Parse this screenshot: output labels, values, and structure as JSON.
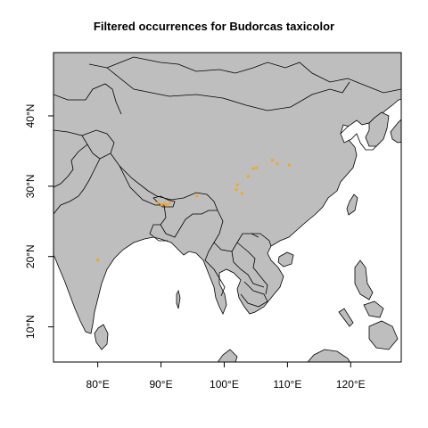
{
  "title": "Filtered occurrences for Budorcas taxicolor",
  "colors": {
    "land": "#bebebe",
    "sea": "#ffffff",
    "border": "#000000",
    "point": "#f5a623"
  },
  "map_extent": {
    "lon": [
      73,
      128
    ],
    "lat": [
      5,
      49
    ]
  },
  "x_ticks": [
    {
      "value": 80,
      "label": "80°E"
    },
    {
      "value": 90,
      "label": "90°E"
    },
    {
      "value": 100,
      "label": "100°E"
    },
    {
      "value": 110,
      "label": "110°E"
    },
    {
      "value": 120,
      "label": "120°E"
    }
  ],
  "y_ticks": [
    {
      "value": 10,
      "label": "10°N"
    },
    {
      "value": 20,
      "label": "20°N"
    },
    {
      "value": 30,
      "label": "30°N"
    },
    {
      "value": 40,
      "label": "40°N"
    }
  ],
  "occurrences": [
    {
      "lon": 80.0,
      "lat": 19.5
    },
    {
      "lon": 89.5,
      "lat": 27.6
    },
    {
      "lon": 90.1,
      "lat": 27.4
    },
    {
      "lon": 90.6,
      "lat": 27.5
    },
    {
      "lon": 91.0,
      "lat": 27.3
    },
    {
      "lon": 91.4,
      "lat": 27.7
    },
    {
      "lon": 95.7,
      "lat": 28.6
    },
    {
      "lon": 101.9,
      "lat": 29.5
    },
    {
      "lon": 102.1,
      "lat": 30.2
    },
    {
      "lon": 102.8,
      "lat": 29.0
    },
    {
      "lon": 103.8,
      "lat": 31.4
    },
    {
      "lon": 104.6,
      "lat": 32.5
    },
    {
      "lon": 105.1,
      "lat": 32.6
    },
    {
      "lon": 107.6,
      "lat": 33.7
    },
    {
      "lon": 108.4,
      "lat": 33.2
    },
    {
      "lon": 110.3,
      "lat": 33.0
    }
  ]
}
